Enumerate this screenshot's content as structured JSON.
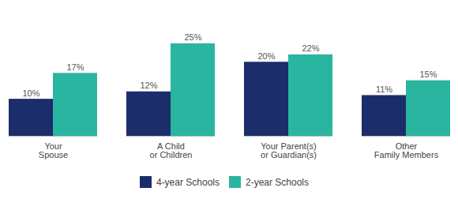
{
  "chart_data": {
    "type": "bar",
    "categories": [
      "Your\nSpouse",
      "A Child\nor Children",
      "Your Parent(s)\nor Guardian(s)",
      "Other\nFamily Members"
    ],
    "series": [
      {
        "name": "4-year Schools",
        "color": "#1b2d6b",
        "values": [
          10,
          12,
          20,
          11
        ],
        "value_labels": [
          "10%",
          "12%",
          "20%",
          "11%"
        ]
      },
      {
        "name": "2-year Schools",
        "color": "#2ab5a0",
        "values": [
          17,
          25,
          22,
          15
        ],
        "value_labels": [
          "17%",
          "25%",
          "22%",
          "15%"
        ]
      }
    ],
    "ylim": [
      0,
      32
    ],
    "data_labels": true,
    "tick_labels": "x",
    "grid": false,
    "legend": "bottom"
  }
}
